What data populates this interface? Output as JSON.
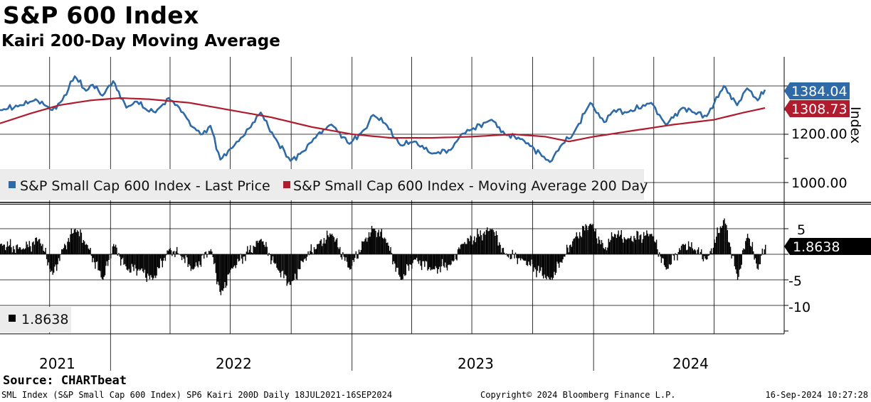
{
  "title": "S&P 600 Index",
  "subtitle": "Kairi 200-Day Moving Average",
  "source": "Source: CHARTbeat",
  "footer": {
    "left": "SML Index (S&P Small Cap 600 Index) SP6 Kairi 200D  Daily 18JUL2021-16SEP2024",
    "center": "Copyright© 2024 Bloomberg Finance L.P.",
    "right": "16-Sep-2024 10:27:28"
  },
  "colors": {
    "price": "#2e6aa8",
    "ma": "#b01c2e",
    "kairi": "#000000",
    "grid": "#000000"
  },
  "chart_data": [
    {
      "type": "line",
      "y_axis_title": "Index",
      "ylim": [
        950,
        1480
      ],
      "y_ticks": [
        1000,
        1200
      ],
      "y_tick_labels": [
        "1000.00",
        "1200.00"
      ],
      "grid": true,
      "legend_position": "bottom-left",
      "x_range": [
        "2021-07-18",
        "2024-09-16"
      ],
      "x_year_labels": [
        "2021",
        "2022",
        "2023",
        "2024"
      ],
      "last_values": {
        "price": "1384.04",
        "ma": "1308.73"
      },
      "series": [
        {
          "name": "S&P Small Cap 600 Index - Last Price",
          "color": "#2e6aa8",
          "points": [
            [
              "2021-07-18",
              1300
            ],
            [
              "2021-08-20",
              1320
            ],
            [
              "2021-09-10",
              1345
            ],
            [
              "2021-10-05",
              1300
            ],
            [
              "2021-10-20",
              1340
            ],
            [
              "2021-11-08",
              1440
            ],
            [
              "2021-11-25",
              1380
            ],
            [
              "2021-12-05",
              1405
            ],
            [
              "2021-12-20",
              1360
            ],
            [
              "2022-01-05",
              1420
            ],
            [
              "2022-01-25",
              1310
            ],
            [
              "2022-02-10",
              1335
            ],
            [
              "2022-02-25",
              1300
            ],
            [
              "2022-03-10",
              1290
            ],
            [
              "2022-03-30",
              1350
            ],
            [
              "2022-04-15",
              1310
            ],
            [
              "2022-05-05",
              1230
            ],
            [
              "2022-05-20",
              1200
            ],
            [
              "2022-06-01",
              1235
            ],
            [
              "2022-06-16",
              1095
            ],
            [
              "2022-07-01",
              1140
            ],
            [
              "2022-07-20",
              1190
            ],
            [
              "2022-08-16",
              1290
            ],
            [
              "2022-09-05",
              1190
            ],
            [
              "2022-09-30",
              1090
            ],
            [
              "2022-10-20",
              1130
            ],
            [
              "2022-11-10",
              1200
            ],
            [
              "2022-12-01",
              1240
            ],
            [
              "2022-12-28",
              1160
            ],
            [
              "2023-01-20",
              1220
            ],
            [
              "2023-02-02",
              1280
            ],
            [
              "2023-02-20",
              1245
            ],
            [
              "2023-03-15",
              1155
            ],
            [
              "2023-04-05",
              1170
            ],
            [
              "2023-05-02",
              1120
            ],
            [
              "2023-05-30",
              1135
            ],
            [
              "2023-06-15",
              1200
            ],
            [
              "2023-07-31",
              1260
            ],
            [
              "2023-08-20",
              1200
            ],
            [
              "2023-09-15",
              1180
            ],
            [
              "2023-10-27",
              1085
            ],
            [
              "2023-11-15",
              1160
            ],
            [
              "2023-12-01",
              1200
            ],
            [
              "2023-12-27",
              1330
            ],
            [
              "2024-01-17",
              1250
            ],
            [
              "2024-02-01",
              1300
            ],
            [
              "2024-02-20",
              1290
            ],
            [
              "2024-03-28",
              1330
            ],
            [
              "2024-04-19",
              1240
            ],
            [
              "2024-05-15",
              1310
            ],
            [
              "2024-06-01",
              1290
            ],
            [
              "2024-06-20",
              1275
            ],
            [
              "2024-07-16",
              1400
            ],
            [
              "2024-08-05",
              1320
            ],
            [
              "2024-08-20",
              1390
            ],
            [
              "2024-09-05",
              1340
            ],
            [
              "2024-09-16",
              1384.04
            ]
          ]
        },
        {
          "name": "S&P Small Cap 600 Index - Moving Average 200 Day",
          "color": "#b01c2e",
          "points": [
            [
              "2021-07-18",
              1245
            ],
            [
              "2021-09-01",
              1285
            ],
            [
              "2021-10-15",
              1320
            ],
            [
              "2021-12-01",
              1340
            ],
            [
              "2022-01-15",
              1350
            ],
            [
              "2022-03-01",
              1345
            ],
            [
              "2022-05-01",
              1330
            ],
            [
              "2022-07-01",
              1300
            ],
            [
              "2022-09-01",
              1270
            ],
            [
              "2022-11-01",
              1230
            ],
            [
              "2023-01-01",
              1200
            ],
            [
              "2023-03-01",
              1185
            ],
            [
              "2023-05-01",
              1185
            ],
            [
              "2023-07-01",
              1190
            ],
            [
              "2023-09-01",
              1200
            ],
            [
              "2023-10-20",
              1190
            ],
            [
              "2023-11-25",
              1170
            ],
            [
              "2024-01-01",
              1190
            ],
            [
              "2024-03-01",
              1215
            ],
            [
              "2024-05-01",
              1240
            ],
            [
              "2024-07-01",
              1260
            ],
            [
              "2024-08-15",
              1290
            ],
            [
              "2024-09-16",
              1308.73
            ]
          ]
        }
      ]
    },
    {
      "type": "bar",
      "series_name": "Kairi 200-Day",
      "ylim": [
        -15,
        8
      ],
      "y_ticks": [
        5,
        0,
        -5,
        -10
      ],
      "y_tick_labels": [
        "5",
        "0",
        "-5",
        "-10"
      ],
      "grid": true,
      "legend_position": "bottom-left",
      "legend_label": "1.8638",
      "last_value": "1.8638",
      "points": [
        [
          "2021-07-18",
          2
        ],
        [
          "2021-08-20",
          1
        ],
        [
          "2021-09-15",
          3
        ],
        [
          "2021-10-05",
          -4
        ],
        [
          "2021-10-20",
          1
        ],
        [
          "2021-11-08",
          5
        ],
        [
          "2021-11-25",
          2
        ],
        [
          "2021-12-20",
          -5
        ],
        [
          "2022-01-05",
          2
        ],
        [
          "2022-01-25",
          -3
        ],
        [
          "2022-02-15",
          -3
        ],
        [
          "2022-03-05",
          -5
        ],
        [
          "2022-03-30",
          1
        ],
        [
          "2022-04-15",
          0
        ],
        [
          "2022-05-05",
          -3
        ],
        [
          "2022-06-01",
          1
        ],
        [
          "2022-06-16",
          -8
        ],
        [
          "2022-07-01",
          -3
        ],
        [
          "2022-08-16",
          3
        ],
        [
          "2022-09-10",
          -3
        ],
        [
          "2022-09-30",
          -6
        ],
        [
          "2022-10-20",
          -1
        ],
        [
          "2022-11-10",
          2
        ],
        [
          "2022-12-01",
          4
        ],
        [
          "2022-12-28",
          -3
        ],
        [
          "2023-01-20",
          3
        ],
        [
          "2023-02-02",
          5
        ],
        [
          "2023-02-20",
          3
        ],
        [
          "2023-03-15",
          -5
        ],
        [
          "2023-04-05",
          -1
        ],
        [
          "2023-05-02",
          -3
        ],
        [
          "2023-05-30",
          -2
        ],
        [
          "2023-06-15",
          2
        ],
        [
          "2023-07-31",
          5
        ],
        [
          "2023-08-20",
          0
        ],
        [
          "2023-09-15",
          -1
        ],
        [
          "2023-10-27",
          -5
        ],
        [
          "2023-11-15",
          -1
        ],
        [
          "2023-12-01",
          3
        ],
        [
          "2023-12-27",
          6
        ],
        [
          "2024-01-17",
          1
        ],
        [
          "2024-02-01",
          4
        ],
        [
          "2024-02-20",
          3
        ],
        [
          "2024-03-28",
          4
        ],
        [
          "2024-04-19",
          -3
        ],
        [
          "2024-05-15",
          2
        ],
        [
          "2024-06-01",
          1
        ],
        [
          "2024-06-20",
          -1
        ],
        [
          "2024-07-16",
          7
        ],
        [
          "2024-08-05",
          -5
        ],
        [
          "2024-08-20",
          4
        ],
        [
          "2024-09-05",
          -3
        ],
        [
          "2024-09-16",
          1.8638
        ]
      ]
    }
  ]
}
